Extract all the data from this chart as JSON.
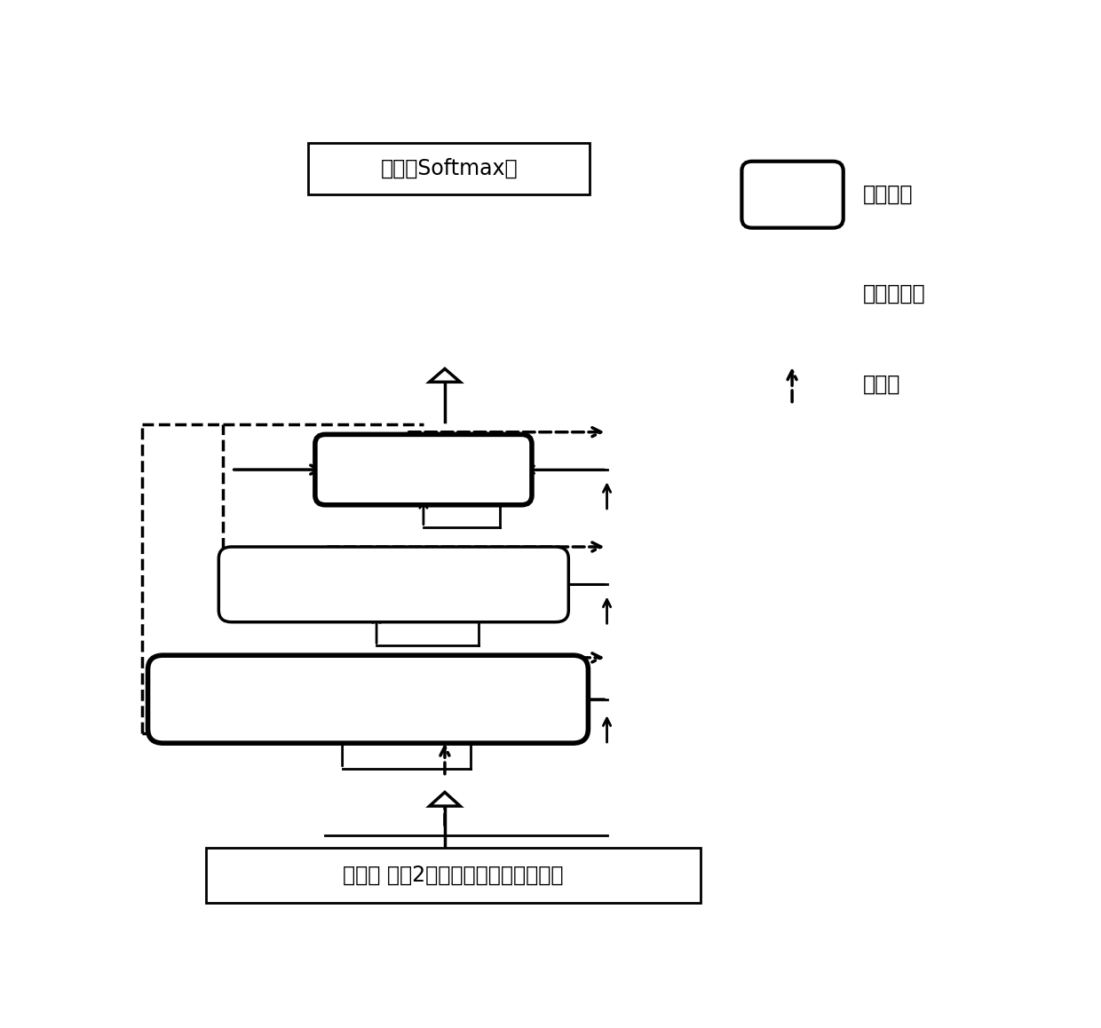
{
  "bg_color": "#ffffff",
  "output_label": "输出：Softmax层",
  "input_label": "输入： 步骤2处理后得到的数据集数据",
  "legend_agg": "聚合节点",
  "legend_basic": "基本运算块",
  "legend_down": "下采样"
}
